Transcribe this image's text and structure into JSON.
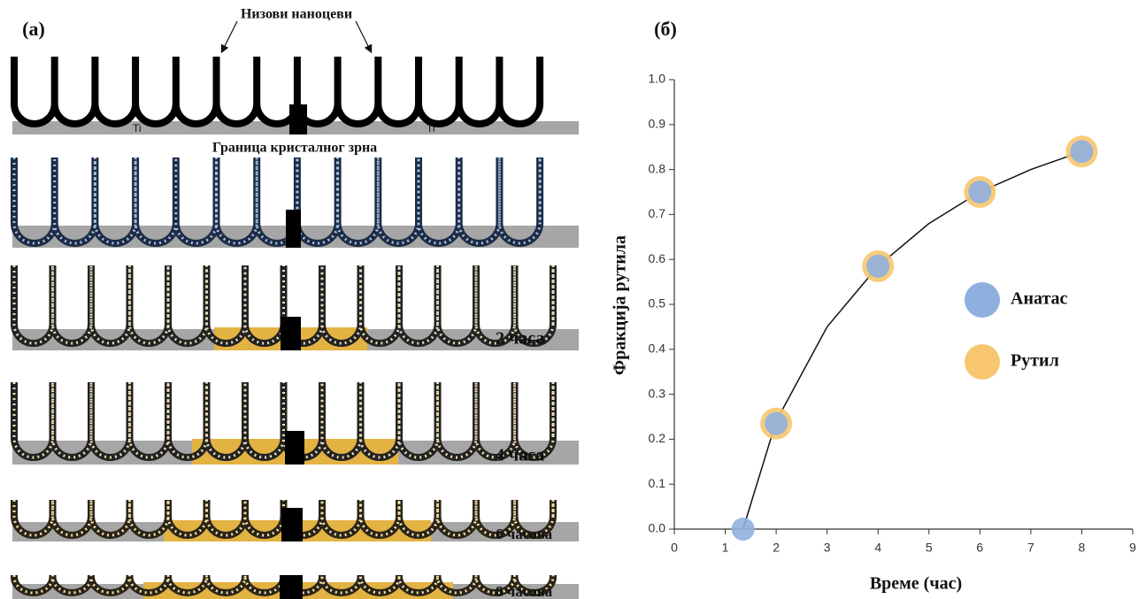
{
  "diagram": {
    "panel_label": "(а)",
    "top_label": "Низови наноцеви",
    "boundary_label": "Граница кристалног зрна",
    "substrate_labels": [
      "Ti",
      "Ti"
    ],
    "time_labels": [
      "2 часа",
      "4 часа",
      "6 часова",
      "8 часова"
    ]
  },
  "chart_data": {
    "type": "scatter",
    "panel_label": "(б)",
    "x_label": "Време (час)",
    "y_label": "Фракција рутила",
    "xlim": [
      0,
      9
    ],
    "xticks": [
      0,
      1,
      2,
      3,
      4,
      5,
      6,
      7,
      8,
      9
    ],
    "ylim": [
      0,
      1
    ],
    "yticks": [
      {
        "value": 0,
        "label": "0.0"
      },
      {
        "value": 0.1,
        "label": "0.1"
      },
      {
        "value": 0.2,
        "label": "0.2"
      },
      {
        "value": 0.3,
        "label": "0.3"
      },
      {
        "value": 0.4,
        "label": "0.4"
      },
      {
        "value": 0.5,
        "label": "0.5"
      },
      {
        "value": 0.6,
        "label": "0.6"
      },
      {
        "value": 0.7,
        "label": "0.7"
      },
      {
        "value": 0.8,
        "label": "0.8"
      },
      {
        "value": 0.9,
        "label": "0.9"
      },
      {
        "value": 1,
        "label": "1.0"
      }
    ],
    "legend": "center right",
    "series": [
      {
        "type": "line",
        "color": "#111111",
        "x": [
          1.35,
          2,
          3,
          4,
          5,
          6,
          7,
          8
        ],
        "values": [
          0,
          0.24,
          0.45,
          0.585,
          0.68,
          0.75,
          0.8,
          0.84
        ]
      },
      {
        "name": "Рутил",
        "color": "#f7c66e",
        "x": [
          2,
          4,
          6,
          8
        ],
        "values": [
          0.235,
          0.585,
          0.75,
          0.84
        ]
      },
      {
        "name": "Анатас",
        "color": "#8fb0de",
        "x": [
          1.35,
          2,
          4,
          6,
          8
        ],
        "values": [
          0,
          0.235,
          0.585,
          0.75,
          0.84
        ]
      }
    ]
  }
}
